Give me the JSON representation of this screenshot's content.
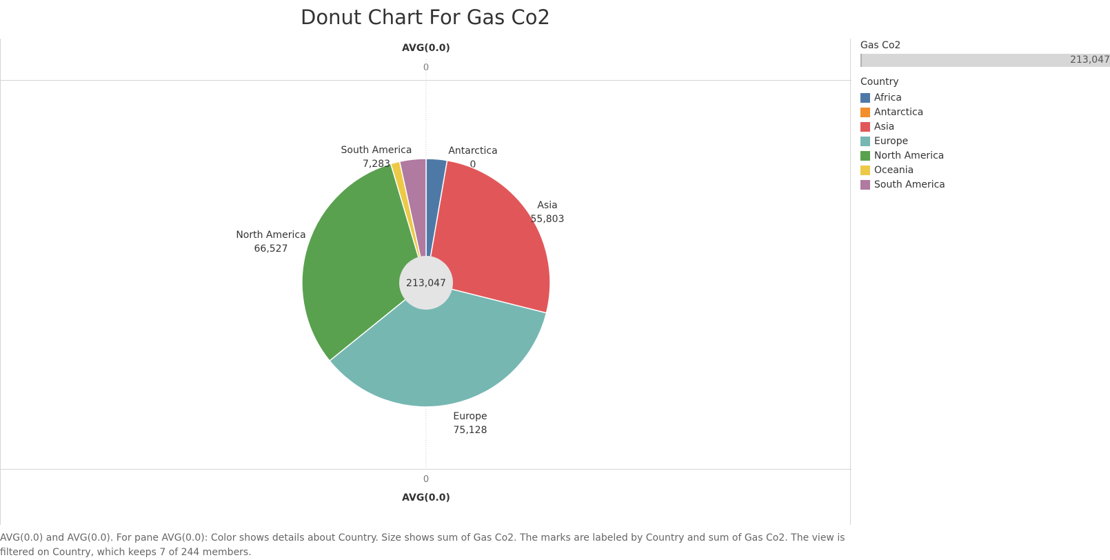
{
  "title": "Donut Chart For Gas Co2",
  "axes": {
    "top_title": "AVG(0.0)",
    "top_tick": "0",
    "bottom_tick": "0",
    "bottom_title": "AVG(0.0)"
  },
  "legend": {
    "size_title": "Gas Co2",
    "size_value": "213,047",
    "color_title": "Country",
    "items": [
      {
        "label": "Africa",
        "color": "#4e79a7"
      },
      {
        "label": "Antarctica",
        "color": "#f28e2b"
      },
      {
        "label": "Asia",
        "color": "#e15759"
      },
      {
        "label": "Europe",
        "color": "#76b7b2"
      },
      {
        "label": "North America",
        "color": "#59a14f"
      },
      {
        "label": "Oceania",
        "color": "#edc948"
      },
      {
        "label": "South America",
        "color": "#b07aa1"
      }
    ]
  },
  "caption": "AVG(0.0) and AVG(0.0).  For pane AVG(0.0):  Color shows details about Country.  Size shows sum of Gas Co2.  The marks are labeled by Country and sum of Gas Co2. The view is filtered on Country, which keeps 7 of 244 members.",
  "chart_data": {
    "type": "pie",
    "title": "Donut Chart For Gas Co2",
    "center_label": "213,047",
    "total": 213047,
    "slices": [
      {
        "category": "Africa",
        "value": 5800,
        "color": "#4e79a7",
        "label": null
      },
      {
        "category": "Antarctica",
        "value": 0,
        "color": "#f28e2b",
        "label": "Antarctica\n0"
      },
      {
        "category": "Asia",
        "value": 55803,
        "color": "#e15759",
        "label": "Asia\n55,803"
      },
      {
        "category": "Europe",
        "value": 75128,
        "color": "#76b7b2",
        "label": "Europe\n75,128"
      },
      {
        "category": "North America",
        "value": 66527,
        "color": "#59a14f",
        "label": "North America\n66,527"
      },
      {
        "category": "Oceania",
        "value": 2506,
        "color": "#edc948",
        "label": null
      },
      {
        "category": "South America",
        "value": 7283,
        "color": "#b07aa1",
        "label": "South America\n7,283"
      }
    ]
  }
}
